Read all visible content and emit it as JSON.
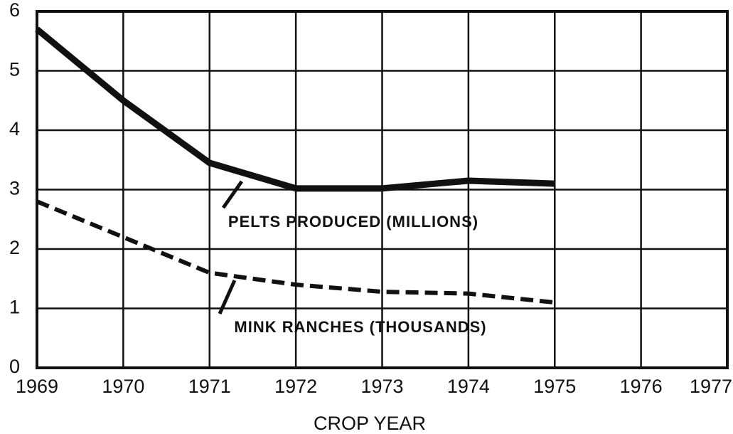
{
  "chart_data": {
    "type": "line",
    "xlabel": "CROP YEAR",
    "x": [
      1969,
      1970,
      1971,
      1972,
      1973,
      1974,
      1975
    ],
    "series": [
      {
        "name": "PELTS PRODUCED (MILLIONS)",
        "color": "#111111",
        "style": "solid",
        "values": [
          5.7,
          4.5,
          3.45,
          3.02,
          3.02,
          3.15,
          3.1
        ]
      },
      {
        "name": "MINK RANCHES (THOUSANDS)",
        "color": "#111111",
        "style": "dashed",
        "values": [
          2.8,
          2.2,
          1.6,
          1.4,
          1.28,
          1.25,
          1.1
        ]
      }
    ],
    "xlim": [
      1969,
      1977
    ],
    "xticks": [
      1969,
      1970,
      1971,
      1972,
      1973,
      1974,
      1975,
      1976,
      1977
    ],
    "ylim": [
      0,
      6
    ],
    "yticks": [
      0,
      1,
      2,
      3,
      4,
      5,
      6
    ],
    "grid": true
  }
}
